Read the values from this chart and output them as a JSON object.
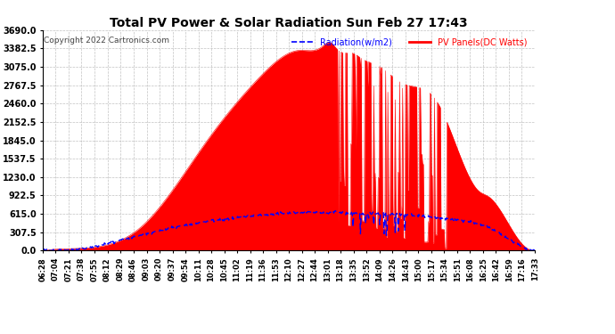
{
  "title": "Total PV Power & Solar Radiation Sun Feb 27 17:43",
  "copyright": "Copyright 2022 Cartronics.com",
  "legend_radiation": "Radiation(w/m2)",
  "legend_pv": "PV Panels(DC Watts)",
  "ymax": 3690.0,
  "ymin": 0.0,
  "yticks": [
    0.0,
    307.5,
    615.0,
    922.5,
    1230.0,
    1537.5,
    1845.0,
    2152.5,
    2460.0,
    2767.5,
    3075.0,
    3382.5,
    3690.0
  ],
  "bg_color": "#ffffff",
  "grid_color": "#bbbbbb",
  "pv_color": "#ff0000",
  "radiation_color": "#0000ff",
  "title_color": "#000000",
  "copyright_color": "#000000",
  "legend_radiation_color": "#0000ff",
  "legend_pv_color": "#ff0000",
  "x_tick_labels": [
    "06:28",
    "07:04",
    "07:21",
    "07:38",
    "07:55",
    "08:12",
    "08:29",
    "08:46",
    "09:03",
    "09:20",
    "09:37",
    "09:54",
    "10:11",
    "10:28",
    "10:45",
    "11:02",
    "11:19",
    "11:36",
    "11:53",
    "12:10",
    "12:27",
    "12:44",
    "13:01",
    "13:18",
    "13:35",
    "13:52",
    "14:09",
    "14:26",
    "14:43",
    "15:00",
    "15:17",
    "15:34",
    "15:51",
    "16:08",
    "16:25",
    "16:42",
    "16:59",
    "17:16",
    "17:33"
  ]
}
